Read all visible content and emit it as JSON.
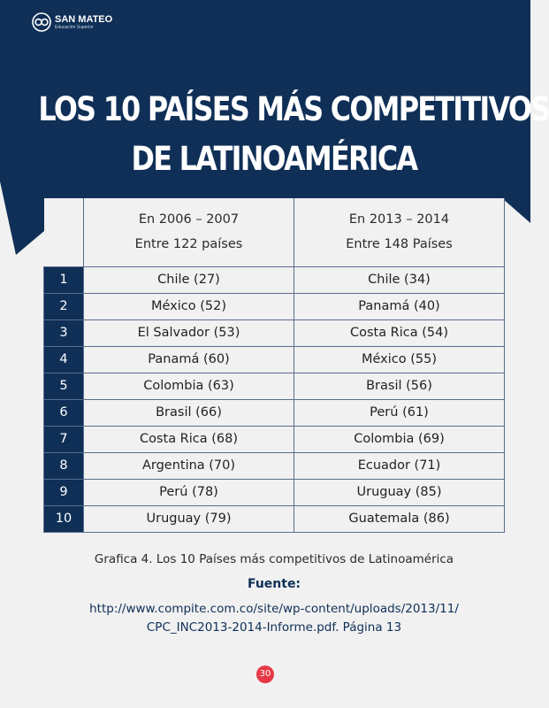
{
  "header": {
    "logo_name": "SAN MATEO",
    "logo_subtitle": "Educación Superior",
    "title_line1": "LOS 10 PAÍSES MÁS COMPETITIVOS",
    "title_line2": "DE LATINOAMÉRICA"
  },
  "table": {
    "columns": [
      {
        "line1": "En 2006 – 2007",
        "line2": "Entre 122 países"
      },
      {
        "line1": "En 2013 – 2014",
        "line2": "Entre 148 Países"
      }
    ],
    "rows": [
      {
        "rank": "1",
        "a": "Chile (27)",
        "b": "Chile (34)"
      },
      {
        "rank": "2",
        "a": "México (52)",
        "b": "Panamá (40)"
      },
      {
        "rank": "3",
        "a": "El Salvador (53)",
        "b": "Costa Rica (54)"
      },
      {
        "rank": "4",
        "a": "Panamá (60)",
        "b": "México (55)"
      },
      {
        "rank": "5",
        "a": "Colombia (63)",
        "b": "Brasil (56)"
      },
      {
        "rank": "6",
        "a": "Brasil (66)",
        "b": "Perú (61)"
      },
      {
        "rank": "7",
        "a": "Costa Rica (68)",
        "b": "Colombia  (69)"
      },
      {
        "rank": "8",
        "a": "Argentina (70)",
        "b": "Ecuador (71)"
      },
      {
        "rank": "9",
        "a": "Perú (78)",
        "b": "Uruguay (85)"
      },
      {
        "rank": "10",
        "a": "Uruguay (79)",
        "b": "Guatemala (86)"
      }
    ]
  },
  "footer": {
    "caption": "Grafica 4.  Los 10 Países más competitivos de Latinoamérica",
    "source_label": "Fuente:",
    "source_url_line1": "http://www.compite.com.co/site/wp-content/uploads/2013/11/",
    "source_url_line2": "CPC_INC2013-2014-Informe.pdf. Página 13",
    "page_number": "30"
  },
  "colors": {
    "navy": "#0f2f57",
    "background": "#f1f1f1",
    "page_badge": "#e63946"
  }
}
